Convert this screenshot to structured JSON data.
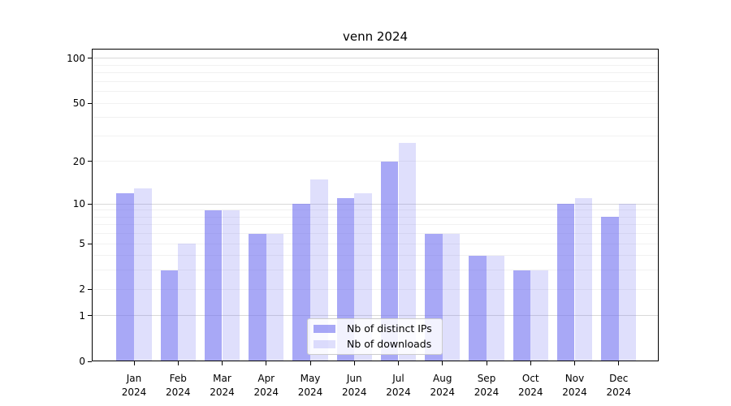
{
  "figure": {
    "background": "#ffffff"
  },
  "chart_data": {
    "type": "bar",
    "title": "venn 2024",
    "categories": [
      "Jan",
      "Feb",
      "Mar",
      "Apr",
      "May",
      "Jun",
      "Jul",
      "Aug",
      "Sep",
      "Oct",
      "Nov",
      "Dec"
    ],
    "year_label": "2024",
    "series": [
      {
        "name": "Nb of distinct IPs",
        "color": "rgba(110,110,240,0.6)",
        "values": [
          12,
          3,
          9,
          6,
          10,
          11,
          20,
          6,
          4,
          3,
          10,
          8
        ]
      },
      {
        "name": "Nb of downloads",
        "color": "rgba(110,110,240,0.22)",
        "values": [
          13,
          5,
          9,
          6,
          15,
          12,
          27,
          6,
          4,
          3,
          11,
          10
        ]
      }
    ],
    "yscale": "log1p",
    "yticks": [
      0,
      1,
      2,
      5,
      10,
      20,
      50,
      100
    ],
    "grid_major": [
      1,
      10,
      100
    ],
    "grid_minor": [
      2,
      3,
      4,
      5,
      6,
      7,
      8,
      9,
      20,
      30,
      40,
      50,
      60,
      70,
      80,
      90
    ],
    "ylim": [
      0,
      116
    ],
    "xlabel": "",
    "ylabel": "",
    "grid": "on",
    "legend_position": "lower center",
    "colors": {
      "grid_major": "#d9d9d9",
      "grid_minor": "#f1f1f1",
      "axis": "#000000",
      "text": "#000000"
    }
  }
}
